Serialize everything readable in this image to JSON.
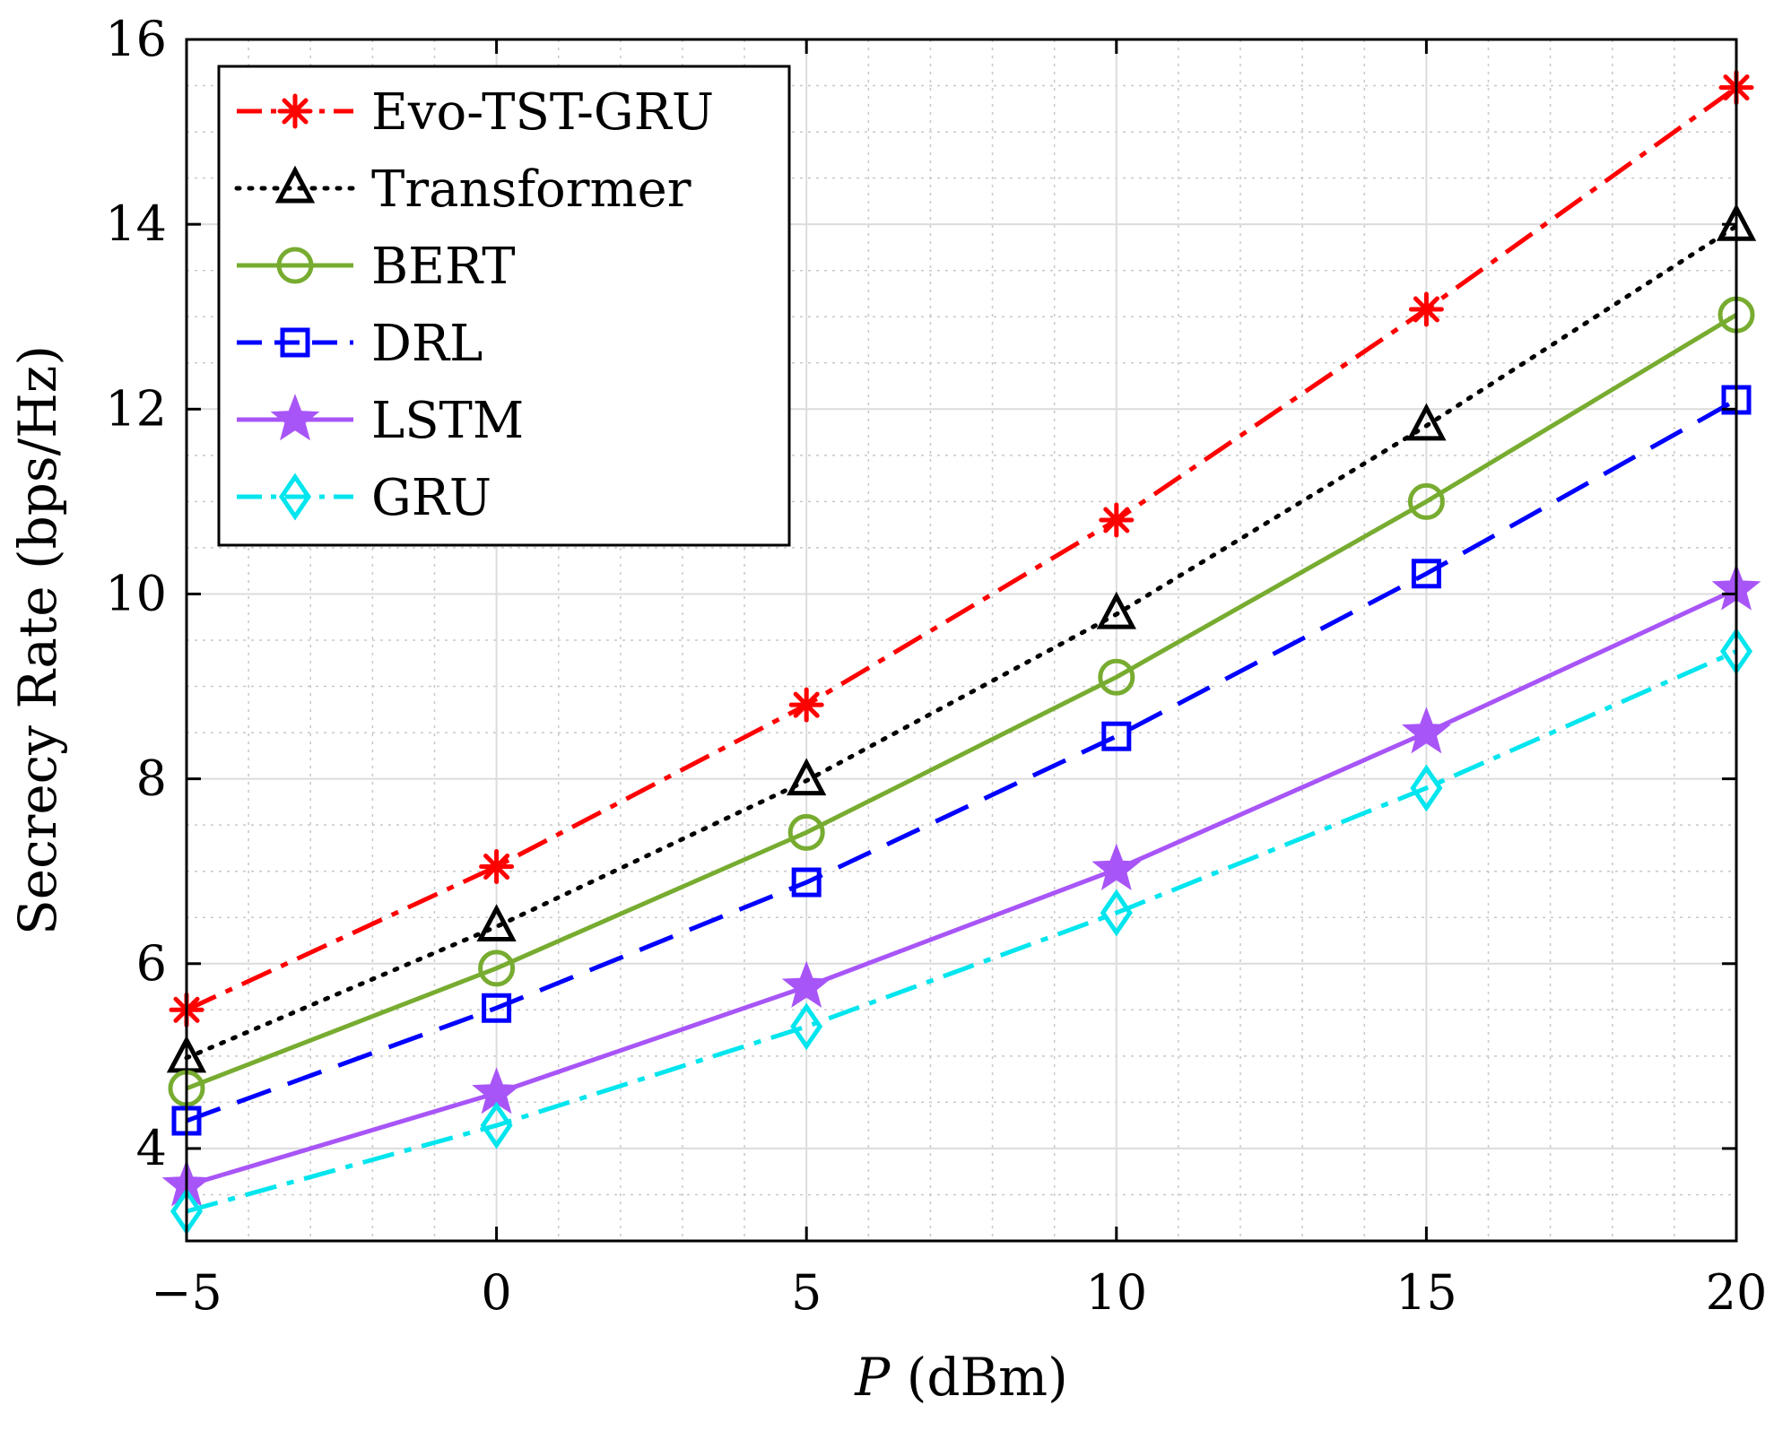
{
  "chart_data": {
    "type": "line",
    "title": "",
    "xlabel_var": "P",
    "xlabel_unit": " (dBm)",
    "ylabel": "Secrecy Rate (bps/Hz)",
    "x": [
      -5,
      0,
      5,
      10,
      15,
      20
    ],
    "x_ticks": [
      -5,
      0,
      5,
      10,
      15,
      20
    ],
    "x_tick_labels": [
      "−5",
      "0",
      "5",
      "10",
      "15",
      "20"
    ],
    "y_ticks": [
      4,
      6,
      8,
      10,
      12,
      14,
      16
    ],
    "y_tick_labels": [
      "4",
      "6",
      "8",
      "10",
      "12",
      "14",
      "16"
    ],
    "xlim": [
      -5,
      20
    ],
    "ylim": [
      3,
      16
    ],
    "grid": true,
    "minor_grid": true,
    "legend_position": "top-left",
    "series": [
      {
        "name": "Evo-TST-GRU",
        "values": [
          5.5,
          7.05,
          8.8,
          10.8,
          13.08,
          15.48
        ],
        "color": "#ff0000",
        "dash": "36,12,8,12",
        "marker": "asterisk",
        "marker_color": "#ff0000"
      },
      {
        "name": "Transformer",
        "values": [
          4.98,
          6.4,
          7.98,
          9.78,
          11.82,
          13.98
        ],
        "color": "#000000",
        "dash": "3,11",
        "marker": "triangle",
        "marker_color": "#000000"
      },
      {
        "name": "BERT",
        "values": [
          4.65,
          5.95,
          7.42,
          9.1,
          11.0,
          13.02
        ],
        "color": "#77ac30",
        "dash": "",
        "marker": "circle",
        "marker_color": "#77ac30"
      },
      {
        "name": "DRL",
        "values": [
          4.3,
          5.52,
          6.88,
          8.46,
          10.22,
          12.1
        ],
        "color": "#0000ff",
        "dash": "40,20",
        "marker": "square",
        "marker_color": "#0000ff"
      },
      {
        "name": "LSTM",
        "values": [
          3.6,
          4.6,
          5.75,
          7.02,
          8.5,
          10.05
        ],
        "color": "#a855f7",
        "dash": "",
        "marker": "star",
        "marker_color": "#a855f7"
      },
      {
        "name": "GRU",
        "values": [
          3.32,
          4.25,
          5.32,
          6.55,
          7.9,
          9.38
        ],
        "color": "#00e5ee",
        "dash": "36,12,8,12",
        "marker": "diamond",
        "marker_color": "#00e5ee"
      }
    ]
  }
}
